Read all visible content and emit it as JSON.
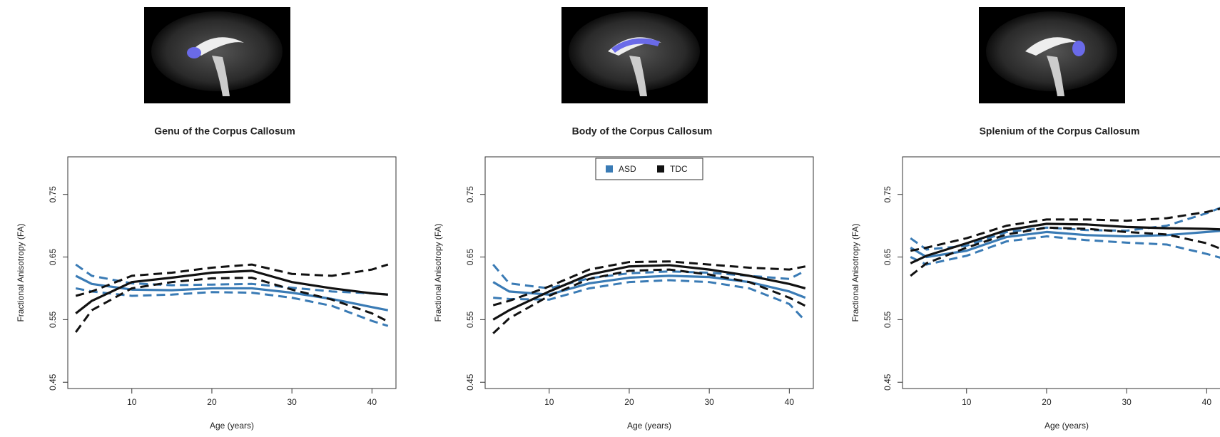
{
  "chart_data": [
    {
      "type": "line",
      "title": "Genu of the Corpus Callosum",
      "x_label": "Age (years)",
      "y_label": "Fractional Anisotropy (FA)",
      "x": [
        3,
        5,
        10,
        15,
        20,
        25,
        30,
        35,
        40,
        42
      ],
      "series": [
        {
          "color": "#3a7bb5",
          "values": [
            0.62,
            0.607,
            0.598,
            0.597,
            0.6,
            0.6,
            0.593,
            0.583,
            0.57,
            0.565
          ],
          "lower": [
            0.6,
            0.595,
            0.588,
            0.59,
            0.594,
            0.593,
            0.585,
            0.572,
            0.548,
            0.54
          ],
          "upper": [
            0.638,
            0.62,
            0.608,
            0.605,
            0.606,
            0.607,
            0.601,
            0.595,
            0.592,
            0.59
          ]
        },
        {
          "color": "#111111",
          "values": [
            0.56,
            0.58,
            0.61,
            0.617,
            0.625,
            0.628,
            0.61,
            0.6,
            0.592,
            0.59
          ],
          "lower": [
            0.53,
            0.565,
            0.6,
            0.61,
            0.616,
            0.617,
            0.598,
            0.582,
            0.56,
            0.547
          ],
          "upper": [
            0.588,
            0.595,
            0.62,
            0.625,
            0.633,
            0.638,
            0.623,
            0.62,
            0.63,
            0.638
          ]
        }
      ],
      "xlim": [
        2,
        43
      ],
      "ylim": [
        0.44,
        0.81
      ],
      "xticks": [
        10,
        20,
        30,
        40
      ],
      "yticks": [
        0.45,
        0.55,
        0.65,
        0.75
      ]
    },
    {
      "type": "line",
      "title": "Body of the Corpus Callosum",
      "x_label": "Age (years)",
      "y_label": "Fractional Anisotropy (FA)",
      "x": [
        3,
        5,
        10,
        15,
        20,
        25,
        30,
        35,
        40,
        42
      ],
      "series": [
        {
          "name": "ASD",
          "color": "#3a7bb5",
          "values": [
            0.61,
            0.595,
            0.59,
            0.608,
            0.617,
            0.62,
            0.618,
            0.61,
            0.595,
            0.585
          ],
          "lower": [
            0.585,
            0.583,
            0.582,
            0.6,
            0.61,
            0.613,
            0.61,
            0.6,
            0.575,
            0.548
          ],
          "upper": [
            0.638,
            0.608,
            0.6,
            0.616,
            0.624,
            0.627,
            0.625,
            0.62,
            0.615,
            0.628
          ]
        },
        {
          "name": "TDC",
          "color": "#111111",
          "values": [
            0.55,
            0.565,
            0.595,
            0.622,
            0.635,
            0.637,
            0.63,
            0.62,
            0.607,
            0.6
          ],
          "lower": [
            0.528,
            0.552,
            0.588,
            0.615,
            0.628,
            0.63,
            0.622,
            0.61,
            0.585,
            0.572
          ],
          "upper": [
            0.573,
            0.58,
            0.603,
            0.63,
            0.642,
            0.643,
            0.638,
            0.633,
            0.63,
            0.635
          ]
        }
      ],
      "legend": "top",
      "xlim": [
        2,
        43
      ],
      "ylim": [
        0.44,
        0.81
      ],
      "xticks": [
        10,
        20,
        30,
        40
      ],
      "yticks": [
        0.45,
        0.55,
        0.65,
        0.75
      ]
    },
    {
      "type": "line",
      "title": "Splenium of the Corpus Callosum",
      "x_label": "Age (years)",
      "y_label": "Fractional Anisotropy (FA)",
      "x": [
        3,
        5,
        10,
        15,
        20,
        25,
        30,
        35,
        40,
        42
      ],
      "series": [
        {
          "color": "#3a7bb5",
          "values": [
            0.665,
            0.65,
            0.66,
            0.682,
            0.69,
            0.685,
            0.683,
            0.685,
            0.69,
            0.692
          ],
          "lower": [
            0.65,
            0.638,
            0.652,
            0.675,
            0.683,
            0.677,
            0.673,
            0.67,
            0.655,
            0.648
          ],
          "upper": [
            0.68,
            0.662,
            0.668,
            0.69,
            0.697,
            0.693,
            0.692,
            0.7,
            0.72,
            0.73
          ]
        },
        {
          "color": "#111111",
          "values": [
            0.64,
            0.652,
            0.672,
            0.693,
            0.703,
            0.702,
            0.698,
            0.696,
            0.695,
            0.694
          ],
          "lower": [
            0.62,
            0.64,
            0.665,
            0.686,
            0.697,
            0.695,
            0.69,
            0.686,
            0.672,
            0.662
          ],
          "upper": [
            0.66,
            0.665,
            0.68,
            0.7,
            0.71,
            0.71,
            0.708,
            0.712,
            0.722,
            0.728
          ]
        }
      ],
      "xlim": [
        2,
        43
      ],
      "ylim": [
        0.44,
        0.81
      ],
      "xticks": [
        10,
        20,
        30,
        40
      ],
      "yticks": [
        0.45,
        0.55,
        0.65,
        0.75
      ]
    }
  ]
}
